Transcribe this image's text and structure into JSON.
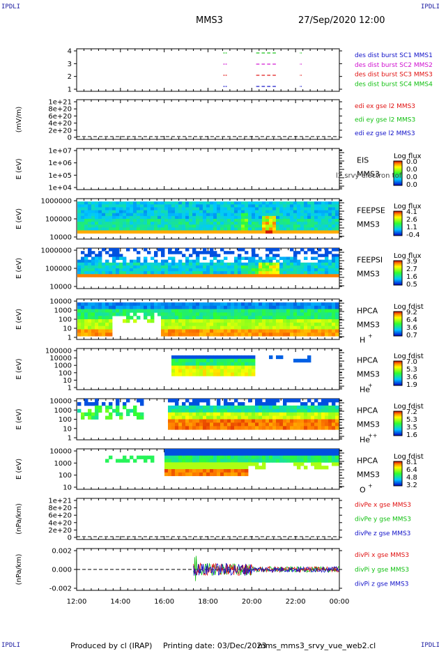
{
  "corner_label": "IPDLI",
  "header": {
    "spacecraft": "MMS3",
    "datetime": "27/Sep/2020 12:00"
  },
  "footer": {
    "produced_by": "Produced by cl (IRAP)",
    "printing_date": "Printing date: 03/Dec/2023",
    "filename": "mms_mms3_srvy_vue_web2.cl"
  },
  "colors": {
    "blue": "#1010c8",
    "magenta": "#d010d0",
    "red": "#e01010",
    "green": "#10c010"
  },
  "chart_data": {
    "type": "multi-panel time series",
    "x_axis": {
      "range": [
        "12:00",
        "00:00"
      ],
      "ticks": [
        "12:00",
        "14:00",
        "16:00",
        "18:00",
        "20:00",
        "22:00",
        "00:00"
      ]
    },
    "panels": [
      {
        "id": "burst",
        "type": "bar",
        "y_ticks": [
          "4",
          "3",
          "2",
          "1"
        ],
        "legend": [
          {
            "label": "des dist burst SC1 MMS1",
            "color": "#1010c8"
          },
          {
            "label": "des dist burst SC2 MMS2",
            "color": "#d010d0"
          },
          {
            "label": "des dist burst SC3 MMS3",
            "color": "#e01010"
          },
          {
            "label": "des dist burst SC4 MMS4",
            "color": "#10c010"
          }
        ],
        "intervals": [
          [
            18.7,
            18.9
          ],
          [
            20.2,
            21.2
          ],
          [
            22.2,
            22.3
          ]
        ]
      },
      {
        "id": "edi",
        "type": "line",
        "ylabel": "(mV/m)",
        "y_ticks": [
          "1e+21",
          "8e+20",
          "6e+20",
          "4e+20",
          "2e+20",
          "0"
        ],
        "legend": [
          {
            "label": "edi ex gse l2 MMS3",
            "color": "#e01010"
          },
          {
            "label": "edi ey gse l2 MMS3",
            "color": "#10c010"
          },
          {
            "label": "edi ez gse l2 MMS3",
            "color": "#1010c8"
          }
        ]
      },
      {
        "id": "eis",
        "type": "heatmap",
        "ylabel": "E (eV)",
        "y_ticks": [
          "1e+07",
          "1e+06",
          "1e+05",
          "1e+04"
        ],
        "instrument": [
          "EIS",
          "MMS3"
        ],
        "overlay": "l2 srvy electron tof",
        "cbar_title": "Log flux",
        "cbar_ticks": [
          "0.0",
          "0.0",
          "0.0",
          "0.0"
        ]
      },
      {
        "id": "feepse",
        "type": "heatmap",
        "ylabel": "E (eV)",
        "y_ticks": [
          "1000000",
          "100000",
          "10000"
        ],
        "instrument": [
          "FEEPSE",
          "MMS3"
        ],
        "cbar_title": "Log flux",
        "cbar_ticks": [
          "4.1",
          "2.6",
          "1.1",
          "-0.4"
        ]
      },
      {
        "id": "feepsi",
        "type": "heatmap",
        "ylabel": "E (eV)",
        "y_ticks": [
          "1000000",
          "100000",
          "10000"
        ],
        "instrument": [
          "FEEPSI",
          "MMS3"
        ],
        "cbar_title": "Log flux",
        "cbar_ticks": [
          "3.9",
          "2.7",
          "1.6",
          "0.5"
        ]
      },
      {
        "id": "hpca_h",
        "type": "heatmap",
        "ylabel": "E (eV)",
        "y_ticks": [
          "10000",
          "1000",
          "100",
          "10",
          "1"
        ],
        "instrument": [
          "HPCA",
          "MMS3"
        ],
        "species": "H",
        "charge": "+",
        "cbar_title": "Log fdist",
        "cbar_ticks": [
          "9.2",
          "6.4",
          "3.6",
          "0.7"
        ]
      },
      {
        "id": "hpca_he",
        "type": "heatmap",
        "ylabel": "E (eV)",
        "y_ticks": [
          "100000",
          "10000",
          "1000",
          "100",
          "10",
          "1"
        ],
        "instrument": [
          "HPCA",
          "MMS3"
        ],
        "species": "He",
        "charge": "+",
        "cbar_title": "Log fdist",
        "cbar_ticks": [
          "7.0",
          "5.3",
          "3.6",
          "1.9"
        ]
      },
      {
        "id": "hpca_hepp",
        "type": "heatmap",
        "ylabel": "E (eV)",
        "y_ticks": [
          "10000",
          "1000",
          "100",
          "10",
          "1"
        ],
        "instrument": [
          "HPCA",
          "MMS3"
        ],
        "species": "He",
        "charge": "++",
        "cbar_title": "Log fdist",
        "cbar_ticks": [
          "7.2",
          "5.3",
          "3.5",
          "1.6"
        ]
      },
      {
        "id": "hpca_o",
        "type": "heatmap",
        "ylabel": "E (eV)",
        "y_ticks": [
          "10000",
          "1000",
          "100",
          "10"
        ],
        "instrument": [
          "HPCA",
          "MMS3"
        ],
        "species": "O",
        "charge": "+",
        "cbar_title": "Log fdist",
        "cbar_ticks": [
          "8.1",
          "6.4",
          "4.8",
          "3.2"
        ]
      },
      {
        "id": "divpe",
        "type": "line",
        "ylabel": "(nPa/km)",
        "y_ticks": [
          "1e+21",
          "8e+20",
          "6e+20",
          "4e+20",
          "2e+20",
          "0"
        ],
        "legend": [
          {
            "label": "divPe x gse MMS3",
            "color": "#e01010"
          },
          {
            "label": "divPe y gse MMS3",
            "color": "#10c010"
          },
          {
            "label": "divPe z gse MMS3",
            "color": "#1010c8"
          }
        ]
      },
      {
        "id": "divpi",
        "type": "line",
        "ylabel": "(nPa/km)",
        "y_ticks": [
          "0.002",
          "0.000",
          "-0.002"
        ],
        "ylim": [
          -0.003,
          0.003
        ],
        "legend": [
          {
            "label": "divPi x gse MMS3",
            "color": "#e01010"
          },
          {
            "label": "divPi y gse MMS3",
            "color": "#10c010"
          },
          {
            "label": "divPi z gse MMS3",
            "color": "#1010c8"
          }
        ],
        "data_start": "17:20"
      }
    ]
  }
}
